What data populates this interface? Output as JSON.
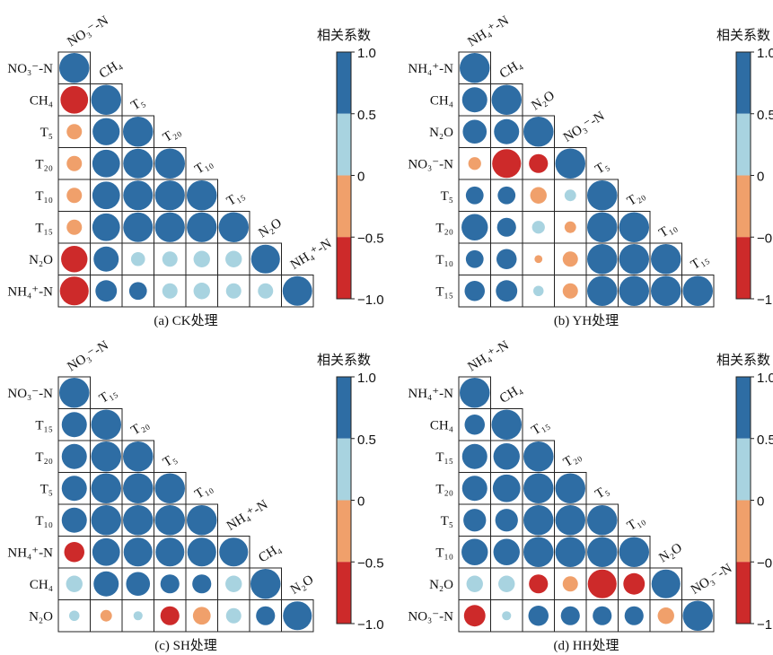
{
  "colors": {
    "strong_positive": "#2e6da4",
    "weak_positive": "#a8d3e0",
    "weak_negative": "#f0a06b",
    "strong_negative": "#cd2a2a",
    "cell_border": "#222222"
  },
  "chart_data": [
    {
      "type": "heatmap",
      "panel": "CK",
      "caption": "(a) CK处理",
      "variables": [
        "NO₃⁻-N",
        "CH₄",
        "T₅",
        "T₂₀",
        "T₁₀",
        "T₁₅",
        "N₂O",
        "NH₄⁺-N"
      ],
      "lower_triangle": [
        [
          1.0
        ],
        [
          -0.9,
          1.0
        ],
        [
          -0.4,
          0.88,
          1.0
        ],
        [
          -0.4,
          0.9,
          0.98,
          1.0
        ],
        [
          -0.4,
          0.9,
          0.98,
          0.99,
          1.0
        ],
        [
          -0.4,
          0.9,
          0.98,
          0.99,
          0.99,
          1.0
        ],
        [
          -0.85,
          0.8,
          0.35,
          0.4,
          0.45,
          0.45,
          0.95
        ],
        [
          -0.95,
          0.65,
          0.5,
          0.4,
          0.45,
          0.4,
          0.4,
          0.98
        ]
      ],
      "value_range": [
        -1.0,
        1.0
      ],
      "colorbar_title": "相关系数",
      "colorbar_ticks": [
        "1.0",
        "0.5",
        "0",
        "−0.5",
        "−1.0"
      ]
    },
    {
      "type": "heatmap",
      "panel": "YH",
      "caption": "(b) YH处理",
      "variables": [
        "NH₄⁺-N",
        "CH₄",
        "N₂O",
        "NO₃⁻-N",
        "T₅",
        "T₂₀",
        "T₁₀",
        "T₁₅"
      ],
      "lower_triangle": [
        [
          1.0
        ],
        [
          0.8,
          1.0
        ],
        [
          0.75,
          0.8,
          1.0
        ],
        [
          -0.3,
          -0.95,
          -0.55,
          1.0
        ],
        [
          0.5,
          0.5,
          -0.45,
          0.25,
          1.0
        ],
        [
          0.85,
          0.55,
          0.3,
          -0.25,
          1.0,
          1.0
        ],
        [
          0.5,
          0.6,
          -0.1,
          -0.4,
          1.0,
          1.0,
          1.0
        ],
        [
          0.6,
          0.65,
          0.2,
          -0.4,
          1.0,
          1.0,
          1.0,
          1.0
        ]
      ],
      "value_range": [
        -1.0,
        1.0
      ],
      "colorbar_title": "相关系数",
      "colorbar_ticks": [
        "1.0",
        "0.5",
        "0",
        "−0.5",
        "−1.0"
      ]
    },
    {
      "type": "heatmap",
      "panel": "SH",
      "caption": "(c) SH处理",
      "variables": [
        "NO₃⁻-N",
        "T₁₅",
        "T₂₀",
        "T₅",
        "T₁₀",
        "NH₄⁺-N",
        "CH₄",
        "N₂O"
      ],
      "lower_triangle": [
        [
          1.0
        ],
        [
          0.8,
          1.0
        ],
        [
          0.8,
          1.0,
          1.0
        ],
        [
          0.8,
          1.0,
          1.0,
          1.0
        ],
        [
          0.8,
          1.0,
          1.0,
          1.0,
          1.0
        ],
        [
          -0.6,
          0.9,
          0.95,
          0.95,
          0.95,
          0.95
        ],
        [
          0.45,
          0.8,
          0.75,
          0.55,
          0.55,
          0.45,
          1.0
        ],
        [
          0.2,
          -0.25,
          0.15,
          -0.55,
          -0.5,
          0.4,
          0.55,
          0.95
        ]
      ],
      "value_range": [
        -1.0,
        1.0
      ],
      "colorbar_title": "相关系数",
      "colorbar_ticks": [
        "1.0",
        "0.5",
        "0",
        "−0.5",
        "−1.0"
      ]
    },
    {
      "type": "heatmap",
      "panel": "HH",
      "caption": "(d) HH处理",
      "variables": [
        "NH₄⁺-N",
        "CH₄",
        "T₁₅",
        "T₂₀",
        "T₅",
        "T₁₀",
        "N₂O",
        "NO₃⁻-N"
      ],
      "lower_triangle": [
        [
          1.0
        ],
        [
          0.6,
          1.0
        ],
        [
          0.8,
          0.85,
          1.0
        ],
        [
          0.8,
          0.9,
          1.0,
          1.0
        ],
        [
          0.7,
          0.7,
          1.0,
          1.0,
          1.0
        ],
        [
          0.85,
          0.85,
          1.0,
          1.0,
          1.0,
          1.0
        ],
        [
          0.45,
          0.45,
          -0.55,
          -0.4,
          -0.95,
          -0.65,
          0.95
        ],
        [
          -0.65,
          0.15,
          0.6,
          0.55,
          0.55,
          0.55,
          -0.45,
          1.0
        ]
      ],
      "value_range": [
        -1.0,
        1.0
      ],
      "colorbar_title": "相关系数",
      "colorbar_ticks": [
        "1.0",
        "0.5",
        "0",
        "−0.5",
        "−1.0"
      ]
    }
  ]
}
